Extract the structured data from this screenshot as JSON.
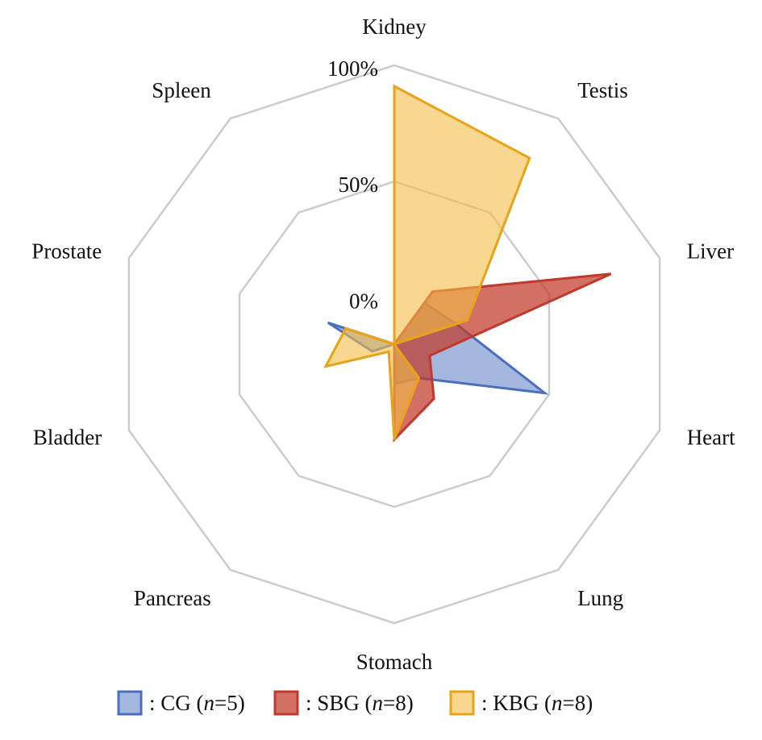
{
  "chart_data": {
    "type": "radar",
    "categories": [
      "Kidney",
      "Testis",
      "Liver",
      "Heart",
      "Lung",
      "Stomach",
      "Pancreas",
      "Bladder",
      "Prostate",
      "Spleen"
    ],
    "radial_ticks": [
      "100%",
      "50%",
      "0%"
    ],
    "rlim": [
      -20,
      100
    ],
    "grid": true,
    "legend_position": "bottom",
    "series": [
      {
        "name": [
          "CG (",
          "n",
          "=5)"
        ],
        "color": "#4a6fbf",
        "values": [
          -20,
          2,
          8,
          48,
          -2,
          -3,
          -20,
          -10,
          10,
          -20
        ]
      },
      {
        "name": [
          "SBG (",
          "n",
          "=8)"
        ],
        "color": "#c0392b",
        "values": [
          -20,
          8,
          78,
          -4,
          9,
          21,
          -20,
          -20,
          2,
          -20
        ]
      },
      {
        "name": [
          "KBG (",
          "n",
          "=8)"
        ],
        "color": "#e8a317",
        "values": [
          91,
          79,
          13,
          -20,
          -2,
          21,
          -16,
          11,
          2,
          -20
        ]
      }
    ]
  }
}
